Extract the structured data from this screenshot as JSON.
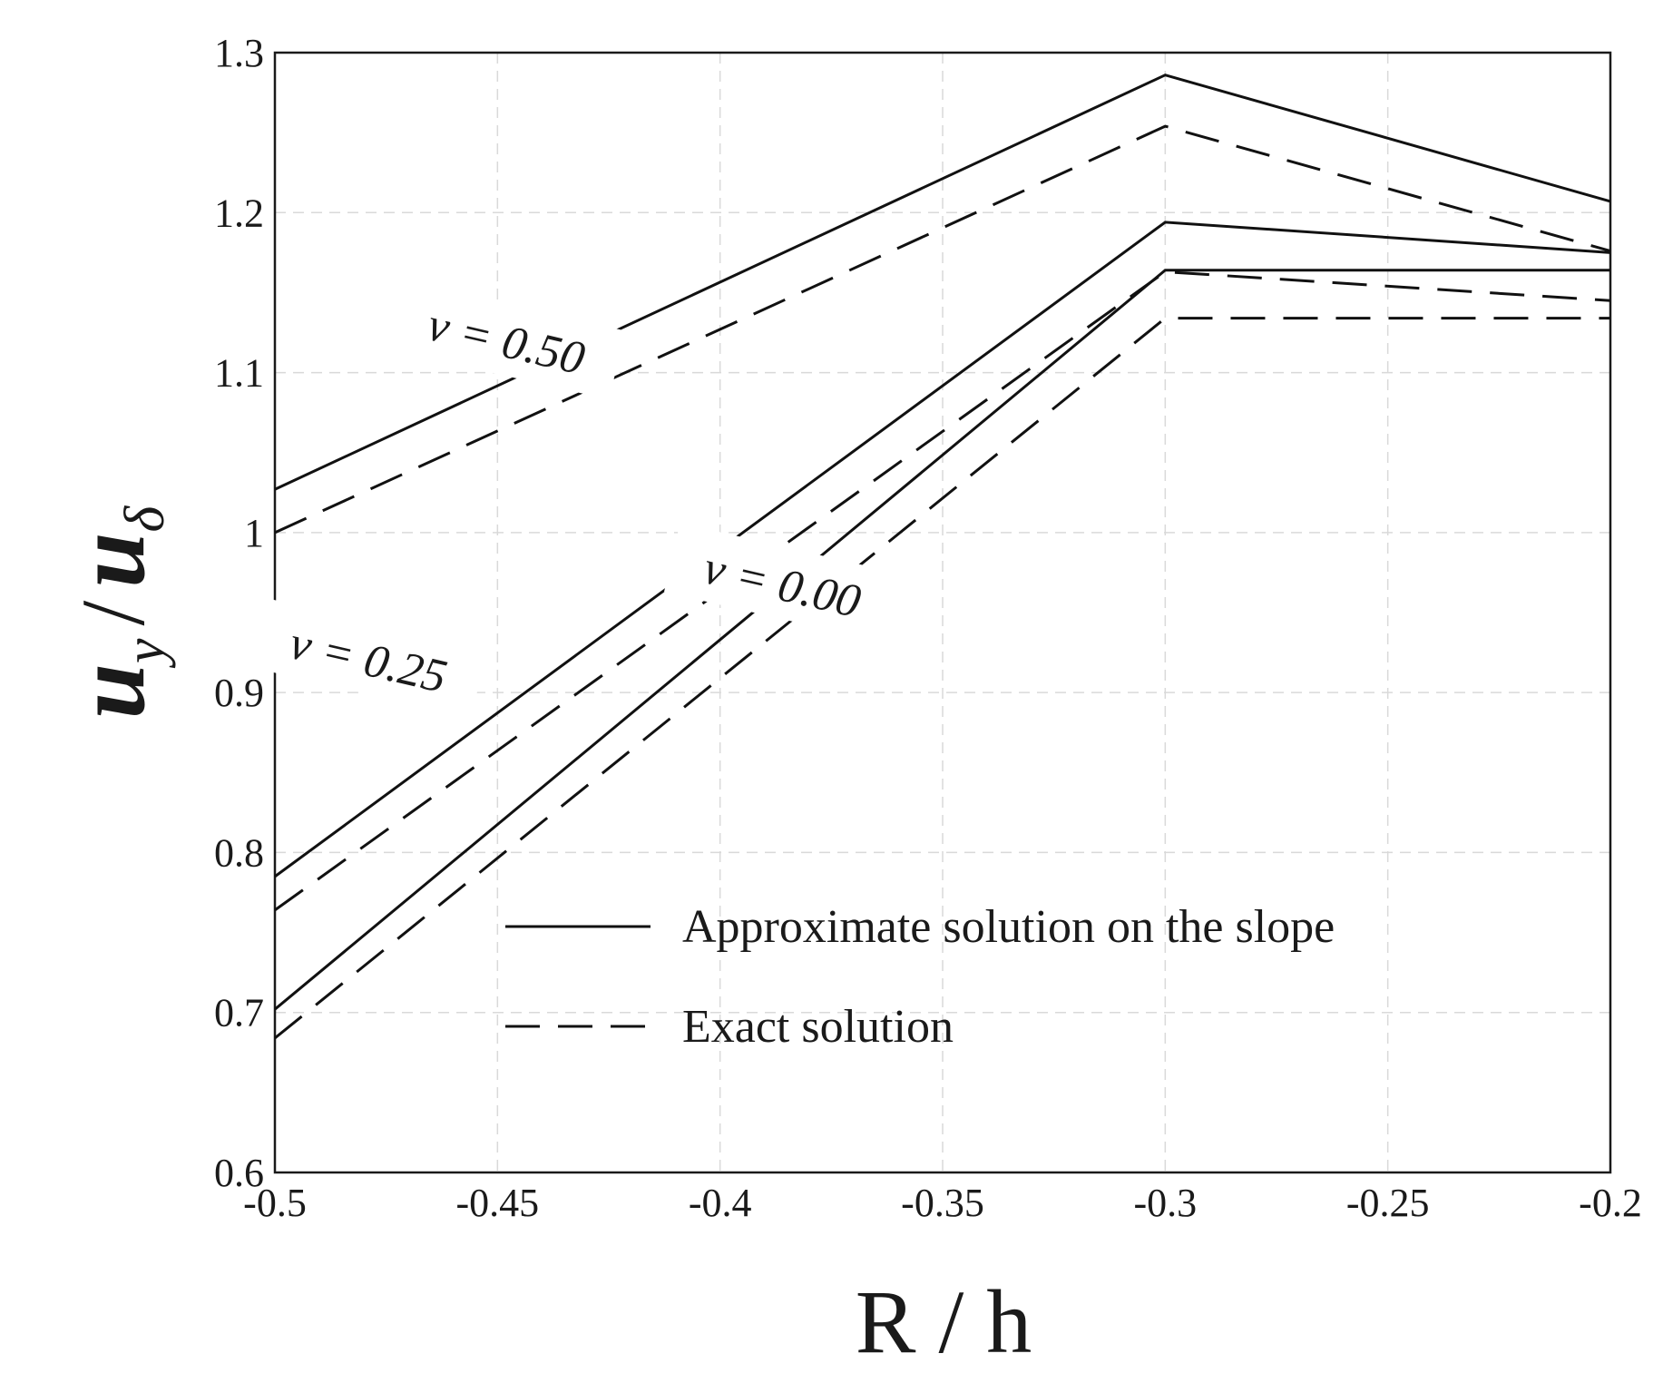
{
  "chart_data": {
    "type": "line",
    "xlabel": "R / h",
    "ylabel": {
      "main": "u",
      "sub1": "y",
      "sep": "/",
      "main2": "u",
      "sub2": "δ"
    },
    "xlim": [
      -0.5,
      -0.2
    ],
    "ylim": [
      0.6,
      1.3
    ],
    "x": [
      -0.5,
      -0.3,
      -0.2
    ],
    "xticks": [
      "-0.5",
      "-0.45",
      "-0.4",
      "-0.35",
      "-0.3",
      "-0.25",
      "-0.2"
    ],
    "xtick_values": [
      -0.5,
      -0.45,
      -0.4,
      -0.35,
      -0.3,
      -0.25,
      -0.2
    ],
    "yticks": [
      "0.6",
      "0.7",
      "0.8",
      "0.9",
      "1",
      "1.1",
      "1.2",
      "1.3"
    ],
    "ytick_values": [
      0.6,
      0.7,
      0.8,
      0.9,
      1.0,
      1.1,
      1.2,
      1.3
    ],
    "grid": true,
    "series": [
      {
        "group": "v = 0.50",
        "style": "solid",
        "values": [
          1.027,
          1.286,
          1.207
        ]
      },
      {
        "group": "v = 0.50",
        "style": "dashed",
        "values": [
          1.0,
          1.254,
          1.176
        ]
      },
      {
        "group": "v = 0.25",
        "style": "solid",
        "values": [
          0.785,
          1.194,
          1.175
        ]
      },
      {
        "group": "v = 0.25",
        "style": "dashed",
        "values": [
          0.764,
          1.163,
          1.145
        ]
      },
      {
        "group": "v = 0.00",
        "style": "solid",
        "values": [
          0.702,
          1.164,
          1.164
        ]
      },
      {
        "group": "v = 0.00",
        "style": "dashed",
        "values": [
          0.684,
          1.134,
          1.134
        ]
      }
    ],
    "annotations": [
      {
        "text": "v = 0.50",
        "x": -0.448,
        "y": 1.12
      },
      {
        "text": "v = 0.25",
        "x": -0.479,
        "y": 0.921
      },
      {
        "text": "v = 0.00",
        "x": -0.386,
        "y": 0.968
      }
    ],
    "legend": {
      "position": "lower-right",
      "entries": [
        {
          "label": "Approximate solution on the slope",
          "style": "solid"
        },
        {
          "label": "Exact solution",
          "style": "dashed"
        }
      ]
    },
    "colors": {
      "line": "#111111",
      "grid": "#d9d9d9",
      "text": "#1a1a1a"
    }
  }
}
